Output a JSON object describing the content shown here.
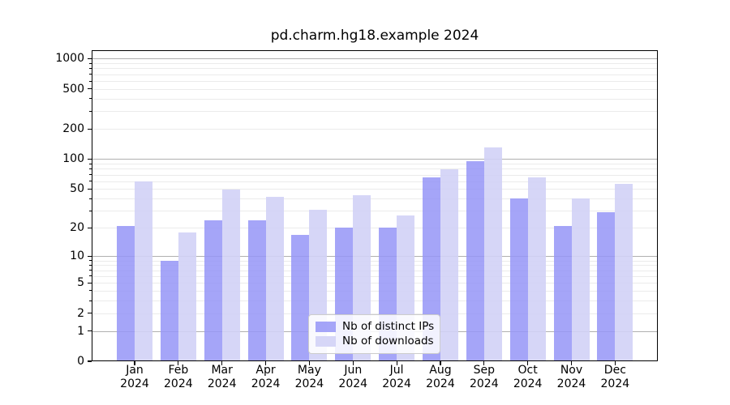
{
  "chart_data": {
    "type": "bar",
    "title": "pd.charm.hg18.example 2024",
    "categories": [
      {
        "month": "Jan",
        "year": "2024"
      },
      {
        "month": "Feb",
        "year": "2024"
      },
      {
        "month": "Mar",
        "year": "2024"
      },
      {
        "month": "Apr",
        "year": "2024"
      },
      {
        "month": "May",
        "year": "2024"
      },
      {
        "month": "Jun",
        "year": "2024"
      },
      {
        "month": "Jul",
        "year": "2024"
      },
      {
        "month": "Aug",
        "year": "2024"
      },
      {
        "month": "Sep",
        "year": "2024"
      },
      {
        "month": "Oct",
        "year": "2024"
      },
      {
        "month": "Nov",
        "year": "2024"
      },
      {
        "month": "Dec",
        "year": "2024"
      }
    ],
    "series": [
      {
        "name": "Nb of distinct IPs",
        "color": "#9696f7",
        "opacity": 0.86,
        "values": [
          21,
          9,
          24,
          24,
          17,
          20,
          20,
          66,
          96,
          40,
          21,
          29
        ]
      },
      {
        "name": "Nb of downloads",
        "color": "#d2d2f6",
        "opacity": 0.9,
        "values": [
          60,
          18,
          49,
          42,
          31,
          43,
          27,
          79,
          130,
          65,
          40,
          56
        ]
      }
    ],
    "yticks": [
      0,
      1,
      2,
      5,
      10,
      20,
      50,
      100,
      200,
      500,
      1000
    ],
    "yscale": "log10(1+x)",
    "ylim": [
      0,
      1200
    ],
    "grid": true,
    "major_grid_values": [
      1,
      10,
      100,
      1000
    ],
    "legend_position": "lower-center-inside",
    "grid_major_color": "#b0b0b0",
    "grid_minor_color": "#ebebeb"
  }
}
